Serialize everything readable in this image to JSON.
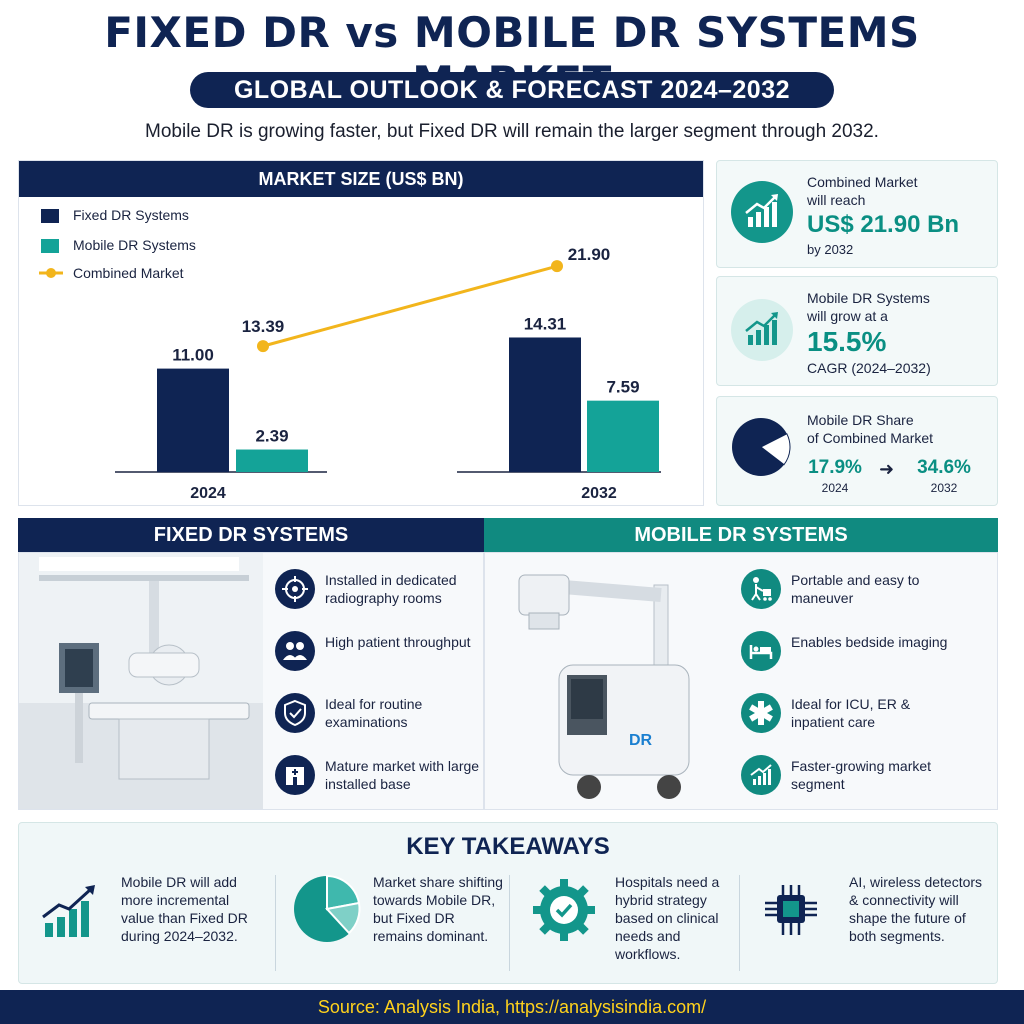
{
  "header": {
    "title": "FIXED DR vs MOBILE DR SYSTEMS MARKET",
    "subtitle": "GLOBAL OUTLOOK & FORECAST 2024–2032",
    "tagline": "Mobile DR is growing faster, but Fixed DR will remain the larger segment through 2032."
  },
  "chart_panel": {
    "heading": "MARKET SIZE (US$ BN)"
  },
  "chart_data": {
    "type": "bar",
    "title": "MARKET SIZE (US$ BN)",
    "categories": [
      "2024",
      "2032"
    ],
    "series": [
      {
        "name": "Fixed DR Systems",
        "type": "bar",
        "values": [
          11.0,
          14.31
        ],
        "color": "#0f2453"
      },
      {
        "name": "Mobile DR Systems",
        "type": "bar",
        "values": [
          2.39,
          7.59
        ],
        "color": "#14a398"
      },
      {
        "name": "Combined Market",
        "type": "line",
        "values": [
          13.39,
          21.9
        ],
        "color": "#f2b51c"
      }
    ],
    "value_labels": [
      "11.00",
      "2.39",
      "14.31",
      "7.59",
      "13.39",
      "21.90"
    ],
    "legend_position": "top-left",
    "grid": false
  },
  "stats": {
    "combined": {
      "line1": "Combined Market",
      "line2": "will reach",
      "value": "US$ 21.90 Bn",
      "line3": "by 2032",
      "icon": "growth-chart-icon"
    },
    "cagr": {
      "line1": "Mobile DR Systems",
      "line2": "will grow at a",
      "value": "15.5%",
      "line3": "CAGR (2024–2032)",
      "icon": "growth-chart-icon"
    },
    "share": {
      "line1": "Mobile DR Share",
      "line2": "of Combined Market",
      "from_value": "17.9%",
      "from_year": "2024",
      "to_value": "34.6%",
      "to_year": "2032",
      "share_fraction_2024": 0.179,
      "icon": "pie-icon"
    }
  },
  "fixed": {
    "heading": "FIXED DR SYSTEMS",
    "features": [
      {
        "text": "Installed in dedicated radiography rooms",
        "icon": "target-icon"
      },
      {
        "text": "High patient throughput",
        "icon": "people-icon"
      },
      {
        "text": "Ideal for routine examinations",
        "icon": "shield-check-icon"
      },
      {
        "text": "Mature market with large installed base",
        "icon": "hospital-icon"
      }
    ]
  },
  "mobile": {
    "heading": "MOBILE DR SYSTEMS",
    "unit_label": "DR",
    "features": [
      {
        "text": "Portable and easy to maneuver",
        "icon": "cart-person-icon"
      },
      {
        "text": "Enables bedside imaging",
        "icon": "bed-icon"
      },
      {
        "text": "Ideal for ICU, ER & inpatient care",
        "icon": "medical-star-icon"
      },
      {
        "text": "Faster-growing market segment",
        "icon": "growth-chart-icon"
      }
    ]
  },
  "takeaways": {
    "title": "KEY TAKEAWAYS",
    "items": [
      {
        "text": "Mobile DR will add more incremental value than Fixed DR during 2024–2032.",
        "icon": "growth-chart-icon"
      },
      {
        "text": "Market share shifting towards Mobile DR, but Fixed DR remains dominant.",
        "icon": "pie-icon"
      },
      {
        "text": "Hospitals need a hybrid strategy based on clinical needs and workflows.",
        "icon": "gear-check-icon"
      },
      {
        "text": "AI, wireless detectors & connectivity will shape the future of both segments.",
        "icon": "chip-icon"
      }
    ]
  },
  "footer": {
    "source": "Source: Analysis India, https://analysisindia.com/"
  },
  "colors": {
    "navy": "#0f2453",
    "teal": "#14a398",
    "gold": "#f2b51c",
    "footer_text": "#ffd21c"
  }
}
